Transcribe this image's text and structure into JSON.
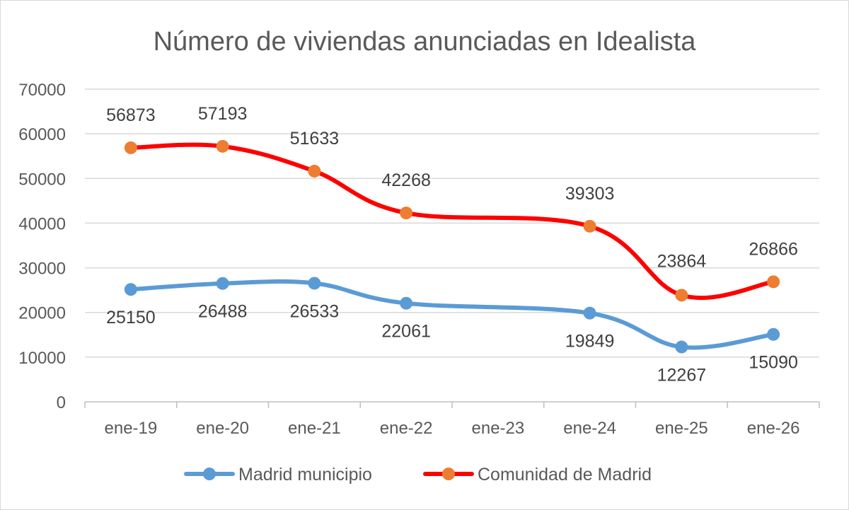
{
  "chart_data": {
    "type": "line",
    "title": "Número de viviendas anunciadas en Idealista",
    "xlabel": "",
    "ylabel": "",
    "categories": [
      "ene-19",
      "ene-20",
      "ene-21",
      "ene-22",
      "ene-23",
      "ene-24",
      "ene-25",
      "ene-26"
    ],
    "ylim": [
      0,
      70000
    ],
    "yticks": [
      "0",
      "10000",
      "20000",
      "30000",
      "40000",
      "50000",
      "60000",
      "70000"
    ],
    "grid": true,
    "smooth": true,
    "legend_position": "bottom",
    "series": [
      {
        "name": "Madrid municipio",
        "color": "#5b9bd5",
        "marker_color": "#5b9bd5",
        "points": [
          {
            "x": "ene-19",
            "y": 25150,
            "label": "25150"
          },
          {
            "x": "ene-20",
            "y": 26488,
            "label": "26488"
          },
          {
            "x": "ene-21",
            "y": 26533,
            "label": "26533"
          },
          {
            "x": "ene-22",
            "y": 22061,
            "label": "22061"
          },
          {
            "x": "ene-24",
            "y": 19849,
            "label": "19849"
          },
          {
            "x": "ene-25",
            "y": 12267,
            "label": "12267"
          },
          {
            "x": "ene-26",
            "y": 15090,
            "label": "15090"
          }
        ]
      },
      {
        "name": "Comunidad de Madrid",
        "color": "#ff0000",
        "marker_color": "#ed7d31",
        "points": [
          {
            "x": "ene-19",
            "y": 56873,
            "label": "56873"
          },
          {
            "x": "ene-20",
            "y": 57193,
            "label": "57193"
          },
          {
            "x": "ene-21",
            "y": 51633,
            "label": "51633"
          },
          {
            "x": "ene-22",
            "y": 42268,
            "label": "42268"
          },
          {
            "x": "ene-24",
            "y": 39303,
            "label": "39303"
          },
          {
            "x": "ene-25",
            "y": 23864,
            "label": "23864"
          },
          {
            "x": "ene-26",
            "y": 26866,
            "label": "26866"
          }
        ]
      }
    ]
  }
}
